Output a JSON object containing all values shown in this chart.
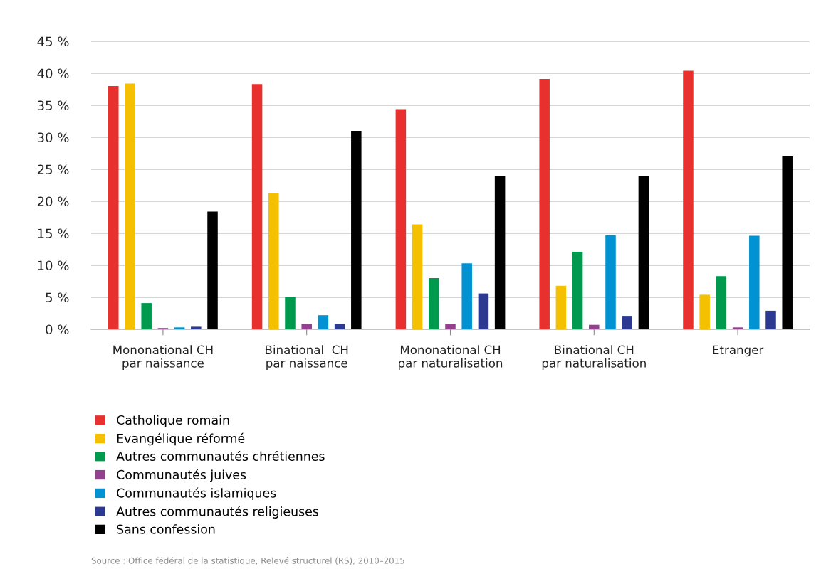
{
  "chart_data": {
    "type": "bar",
    "categories": [
      "Mononational CH\npar naissance",
      "Binational  CH\npar naissance",
      "Mononational CH\npar naturalisation",
      "Binational CH\npar naturalisation",
      "Etranger"
    ],
    "series": [
      {
        "name": "Catholique romain",
        "color": "#e8312f",
        "values": [
          38.0,
          38.3,
          34.4,
          39.1,
          40.4
        ]
      },
      {
        "name": "Evangélique réformé",
        "color": "#f5c000",
        "values": [
          38.4,
          21.3,
          16.4,
          6.8,
          5.4
        ]
      },
      {
        "name": "Autres communautés chrétiennes",
        "color": "#009a4e",
        "values": [
          4.1,
          5.1,
          8.0,
          12.1,
          8.3
        ]
      },
      {
        "name": "Communautés juives",
        "color": "#93408f",
        "values": [
          0.2,
          0.8,
          0.8,
          0.7,
          0.3
        ]
      },
      {
        "name": "Communautés islamiques",
        "color": "#0092d2",
        "values": [
          0.3,
          2.2,
          10.3,
          14.7,
          14.6
        ]
      },
      {
        "name": "Autres communautés religieuses",
        "color": "#2b3990",
        "values": [
          0.4,
          0.8,
          5.6,
          2.1,
          2.9
        ]
      },
      {
        "name": "Sans confession",
        "color": "#000000",
        "values": [
          18.4,
          31.0,
          23.9,
          23.9,
          27.1
        ]
      }
    ],
    "ylim": [
      0,
      45
    ],
    "yticks": [
      {
        "value": 0,
        "label": "0 %"
      },
      {
        "value": 5,
        "label": "5 %"
      },
      {
        "value": 10,
        "label": "10 %"
      },
      {
        "value": 15,
        "label": "15 %"
      },
      {
        "value": 20,
        "label": "20 %"
      },
      {
        "value": 25,
        "label": "25 %"
      },
      {
        "value": 30,
        "label": "30 %"
      },
      {
        "value": 35,
        "label": "35 %"
      },
      {
        "value": 40,
        "label": "40 %"
      },
      {
        "value": 45,
        "label": "45 %"
      }
    ],
    "grid": "y",
    "legend": "bottom",
    "annotations": [
      "Source : Office fédéral de la statistique, Relevé structurel (RS), 2010–2015"
    ]
  }
}
